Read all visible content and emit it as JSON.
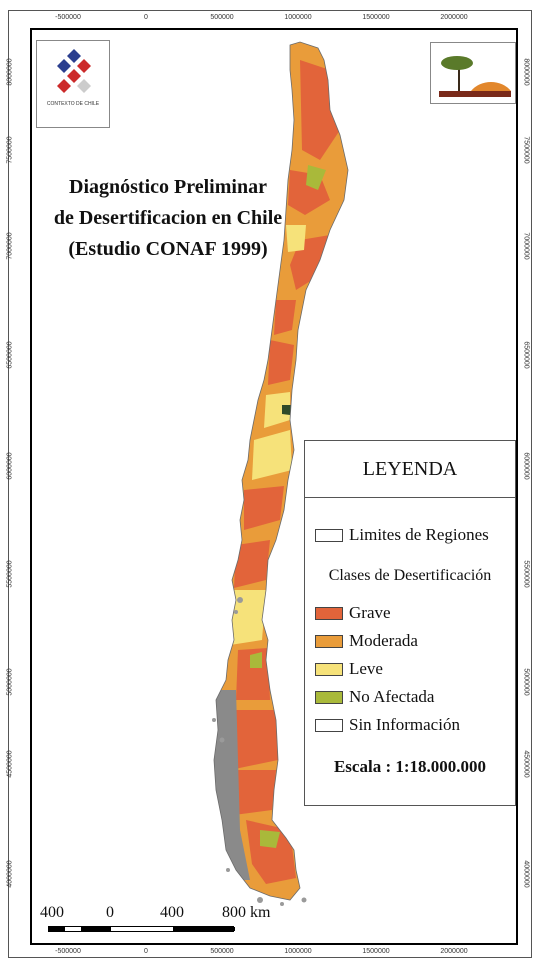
{
  "title": {
    "line1": "Diagnóstico Preliminar",
    "line2": "de Desertificacion en Chile",
    "line3": "(Estudio CONAF 1999)"
  },
  "logo": {
    "caption": "CONTEXTO DE CHILE"
  },
  "legend": {
    "title": "LEYENDA",
    "regions_label": "Limites de Regiones",
    "classes_title": "Clases de Desertificación",
    "classes": [
      {
        "label": "Grave",
        "color": "#e2643a"
      },
      {
        "label": "Moderada",
        "color": "#e99c3a"
      },
      {
        "label": "Leve",
        "color": "#f6e27a"
      },
      {
        "label": "No Afectada",
        "color": "#a9b93a"
      },
      {
        "label": "Sin Información",
        "color": "#ffffff"
      }
    ],
    "scale": "Escala : 1:18.000.000"
  },
  "scalebar": {
    "labels": [
      "400",
      "0",
      "400",
      "800 km"
    ]
  },
  "axes": {
    "x_ticks": [
      "-500000",
      "0",
      "500000",
      "1000000",
      "1500000",
      "2000000"
    ],
    "y_ticks": [
      "8000000",
      "7500000",
      "7000000",
      "6500000",
      "6000000",
      "5500000",
      "5000000",
      "4500000",
      "4000000"
    ]
  },
  "colors": {
    "grave": "#e2643a",
    "moderada": "#e99c3a",
    "leve": "#f6e27a",
    "no_afectada": "#a9b93a",
    "sin_informacion": "#ffffff",
    "archipelago": "#8a8a8a"
  }
}
